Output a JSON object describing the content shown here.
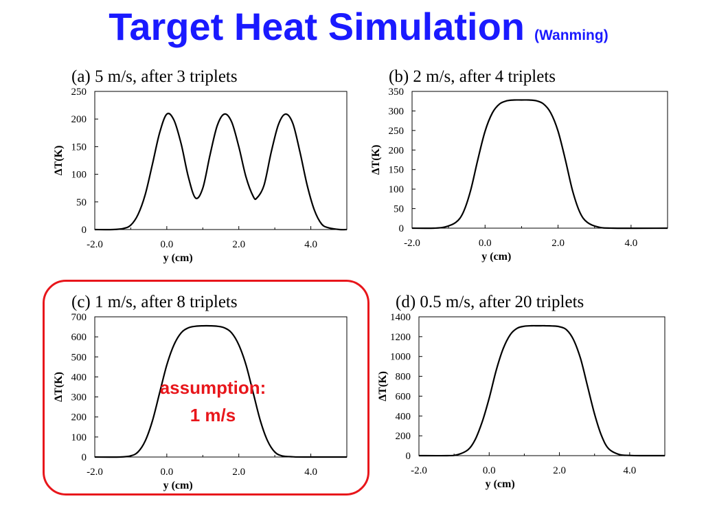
{
  "slide": {
    "title": "Target Heat Simulation",
    "subtitle": "(Wanming)",
    "annotation_line1": "assumption:",
    "annotation_line2": "1 m/s",
    "accent_color": "#1a1aff",
    "highlight_color": "#e8161b"
  },
  "chart_data": [
    {
      "type": "line",
      "title": "(a) 5 m/s, after 3 triplets",
      "xlabel": "y (cm)",
      "ylabel": "ΔT(K)",
      "xlim": [
        -2.0,
        5.0
      ],
      "ylim": [
        0,
        250
      ],
      "xticks": [
        -2.0,
        0.0,
        2.0,
        4.0
      ],
      "xtick_labels": [
        "-2.0",
        "0.0",
        "2.0",
        "4.0"
      ],
      "yticks": [
        0,
        50,
        100,
        150,
        200,
        250
      ],
      "ytick_labels": [
        "0",
        "50",
        "100",
        "150",
        "200",
        "250"
      ],
      "grid": false,
      "x": [
        -2.0,
        -1.5,
        -1.2,
        -1.0,
        -0.8,
        -0.6,
        -0.4,
        -0.2,
        0.0,
        0.2,
        0.4,
        0.6,
        0.8,
        1.0,
        1.2,
        1.4,
        1.6,
        1.8,
        2.0,
        2.2,
        2.4,
        2.5,
        2.7,
        2.9,
        3.1,
        3.3,
        3.5,
        3.7,
        3.9,
        4.1,
        4.3,
        4.5,
        4.8,
        5.0
      ],
      "y": [
        0,
        0,
        2,
        8,
        27,
        63,
        118,
        175,
        209,
        198,
        155,
        95,
        57,
        75,
        135,
        188,
        209,
        195,
        150,
        95,
        60,
        57,
        80,
        140,
        190,
        209,
        192,
        140,
        80,
        35,
        10,
        3,
        0,
        0
      ]
    },
    {
      "type": "line",
      "title": "(b) 2 m/s, after 4 triplets",
      "xlabel": "y (cm)",
      "ylabel": "ΔT(K)",
      "xlim": [
        -2.0,
        5.0
      ],
      "ylim": [
        0,
        350
      ],
      "xticks": [
        -2.0,
        0.0,
        2.0,
        4.0
      ],
      "xtick_labels": [
        "-2.0",
        "0.0",
        "2.0",
        "4.0"
      ],
      "yticks": [
        0,
        50,
        100,
        150,
        200,
        250,
        300,
        350
      ],
      "ytick_labels": [
        "0",
        "50",
        "100",
        "150",
        "200",
        "250",
        "300",
        "350"
      ],
      "grid": false,
      "x": [
        -2.0,
        -1.4,
        -1.1,
        -0.8,
        -0.6,
        -0.4,
        -0.2,
        0.0,
        0.2,
        0.4,
        0.6,
        0.8,
        1.0,
        1.2,
        1.4,
        1.6,
        1.8,
        2.0,
        2.2,
        2.4,
        2.6,
        2.8,
        3.1,
        3.5,
        5.0
      ],
      "y": [
        0,
        0,
        3,
        15,
        40,
        95,
        175,
        248,
        295,
        318,
        326,
        328,
        328,
        328,
        326,
        318,
        295,
        248,
        175,
        95,
        40,
        15,
        3,
        0,
        0
      ]
    },
    {
      "type": "line",
      "title": "(c) 1 m/s, after 8 triplets",
      "xlabel": "y (cm)",
      "ylabel": "ΔT(K)",
      "xlim": [
        -2.0,
        5.0
      ],
      "ylim": [
        0,
        700
      ],
      "xticks": [
        -2.0,
        0.0,
        2.0,
        4.0
      ],
      "xtick_labels": [
        "-2.0",
        "0.0",
        "2.0",
        "4.0"
      ],
      "yticks": [
        0,
        100,
        200,
        300,
        400,
        500,
        600,
        700
      ],
      "ytick_labels": [
        "0",
        "100",
        "200",
        "300",
        "400",
        "500",
        "600",
        "700"
      ],
      "grid": false,
      "x": [
        -2.0,
        -1.3,
        -1.0,
        -0.8,
        -0.6,
        -0.4,
        -0.2,
        0.0,
        0.2,
        0.4,
        0.6,
        0.8,
        1.0,
        1.2,
        1.4,
        1.6,
        1.8,
        2.0,
        2.2,
        2.4,
        2.6,
        2.8,
        3.0,
        3.2,
        3.5,
        3.8,
        5.0
      ],
      "y": [
        0,
        0,
        6,
        25,
        80,
        180,
        320,
        460,
        560,
        620,
        645,
        653,
        655,
        655,
        653,
        645,
        620,
        560,
        460,
        320,
        180,
        80,
        25,
        6,
        1,
        0,
        0
      ]
    },
    {
      "type": "line",
      "title": "(d) 0.5 m/s, after 20 triplets",
      "xlabel": "y (cm)",
      "ylabel": "ΔT(K)",
      "xlim": [
        -2.0,
        5.0
      ],
      "ylim": [
        0,
        1400
      ],
      "xticks": [
        -2.0,
        0.0,
        2.0,
        4.0
      ],
      "xtick_labels": [
        "-2.0",
        "0.0",
        "2.0",
        "4.0"
      ],
      "yticks": [
        0,
        200,
        400,
        600,
        800,
        1000,
        1200,
        1400
      ],
      "ytick_labels": [
        "0",
        "200",
        "400",
        "600",
        "800",
        "1000",
        "1200",
        "1400"
      ],
      "grid": false,
      "x": [
        -2.0,
        -1.2,
        -0.9,
        -0.6,
        -0.4,
        -0.2,
        0.0,
        0.2,
        0.4,
        0.6,
        0.8,
        1.0,
        1.2,
        1.4,
        1.6,
        1.8,
        2.0,
        2.2,
        2.4,
        2.6,
        2.8,
        3.0,
        3.2,
        3.4,
        3.7,
        4.0,
        4.3,
        5.0
      ],
      "y": [
        0,
        0,
        10,
        60,
        160,
        340,
        580,
        860,
        1080,
        1220,
        1285,
        1305,
        1310,
        1310,
        1310,
        1308,
        1300,
        1270,
        1170,
        980,
        700,
        420,
        200,
        70,
        12,
        2,
        0,
        0
      ]
    }
  ]
}
